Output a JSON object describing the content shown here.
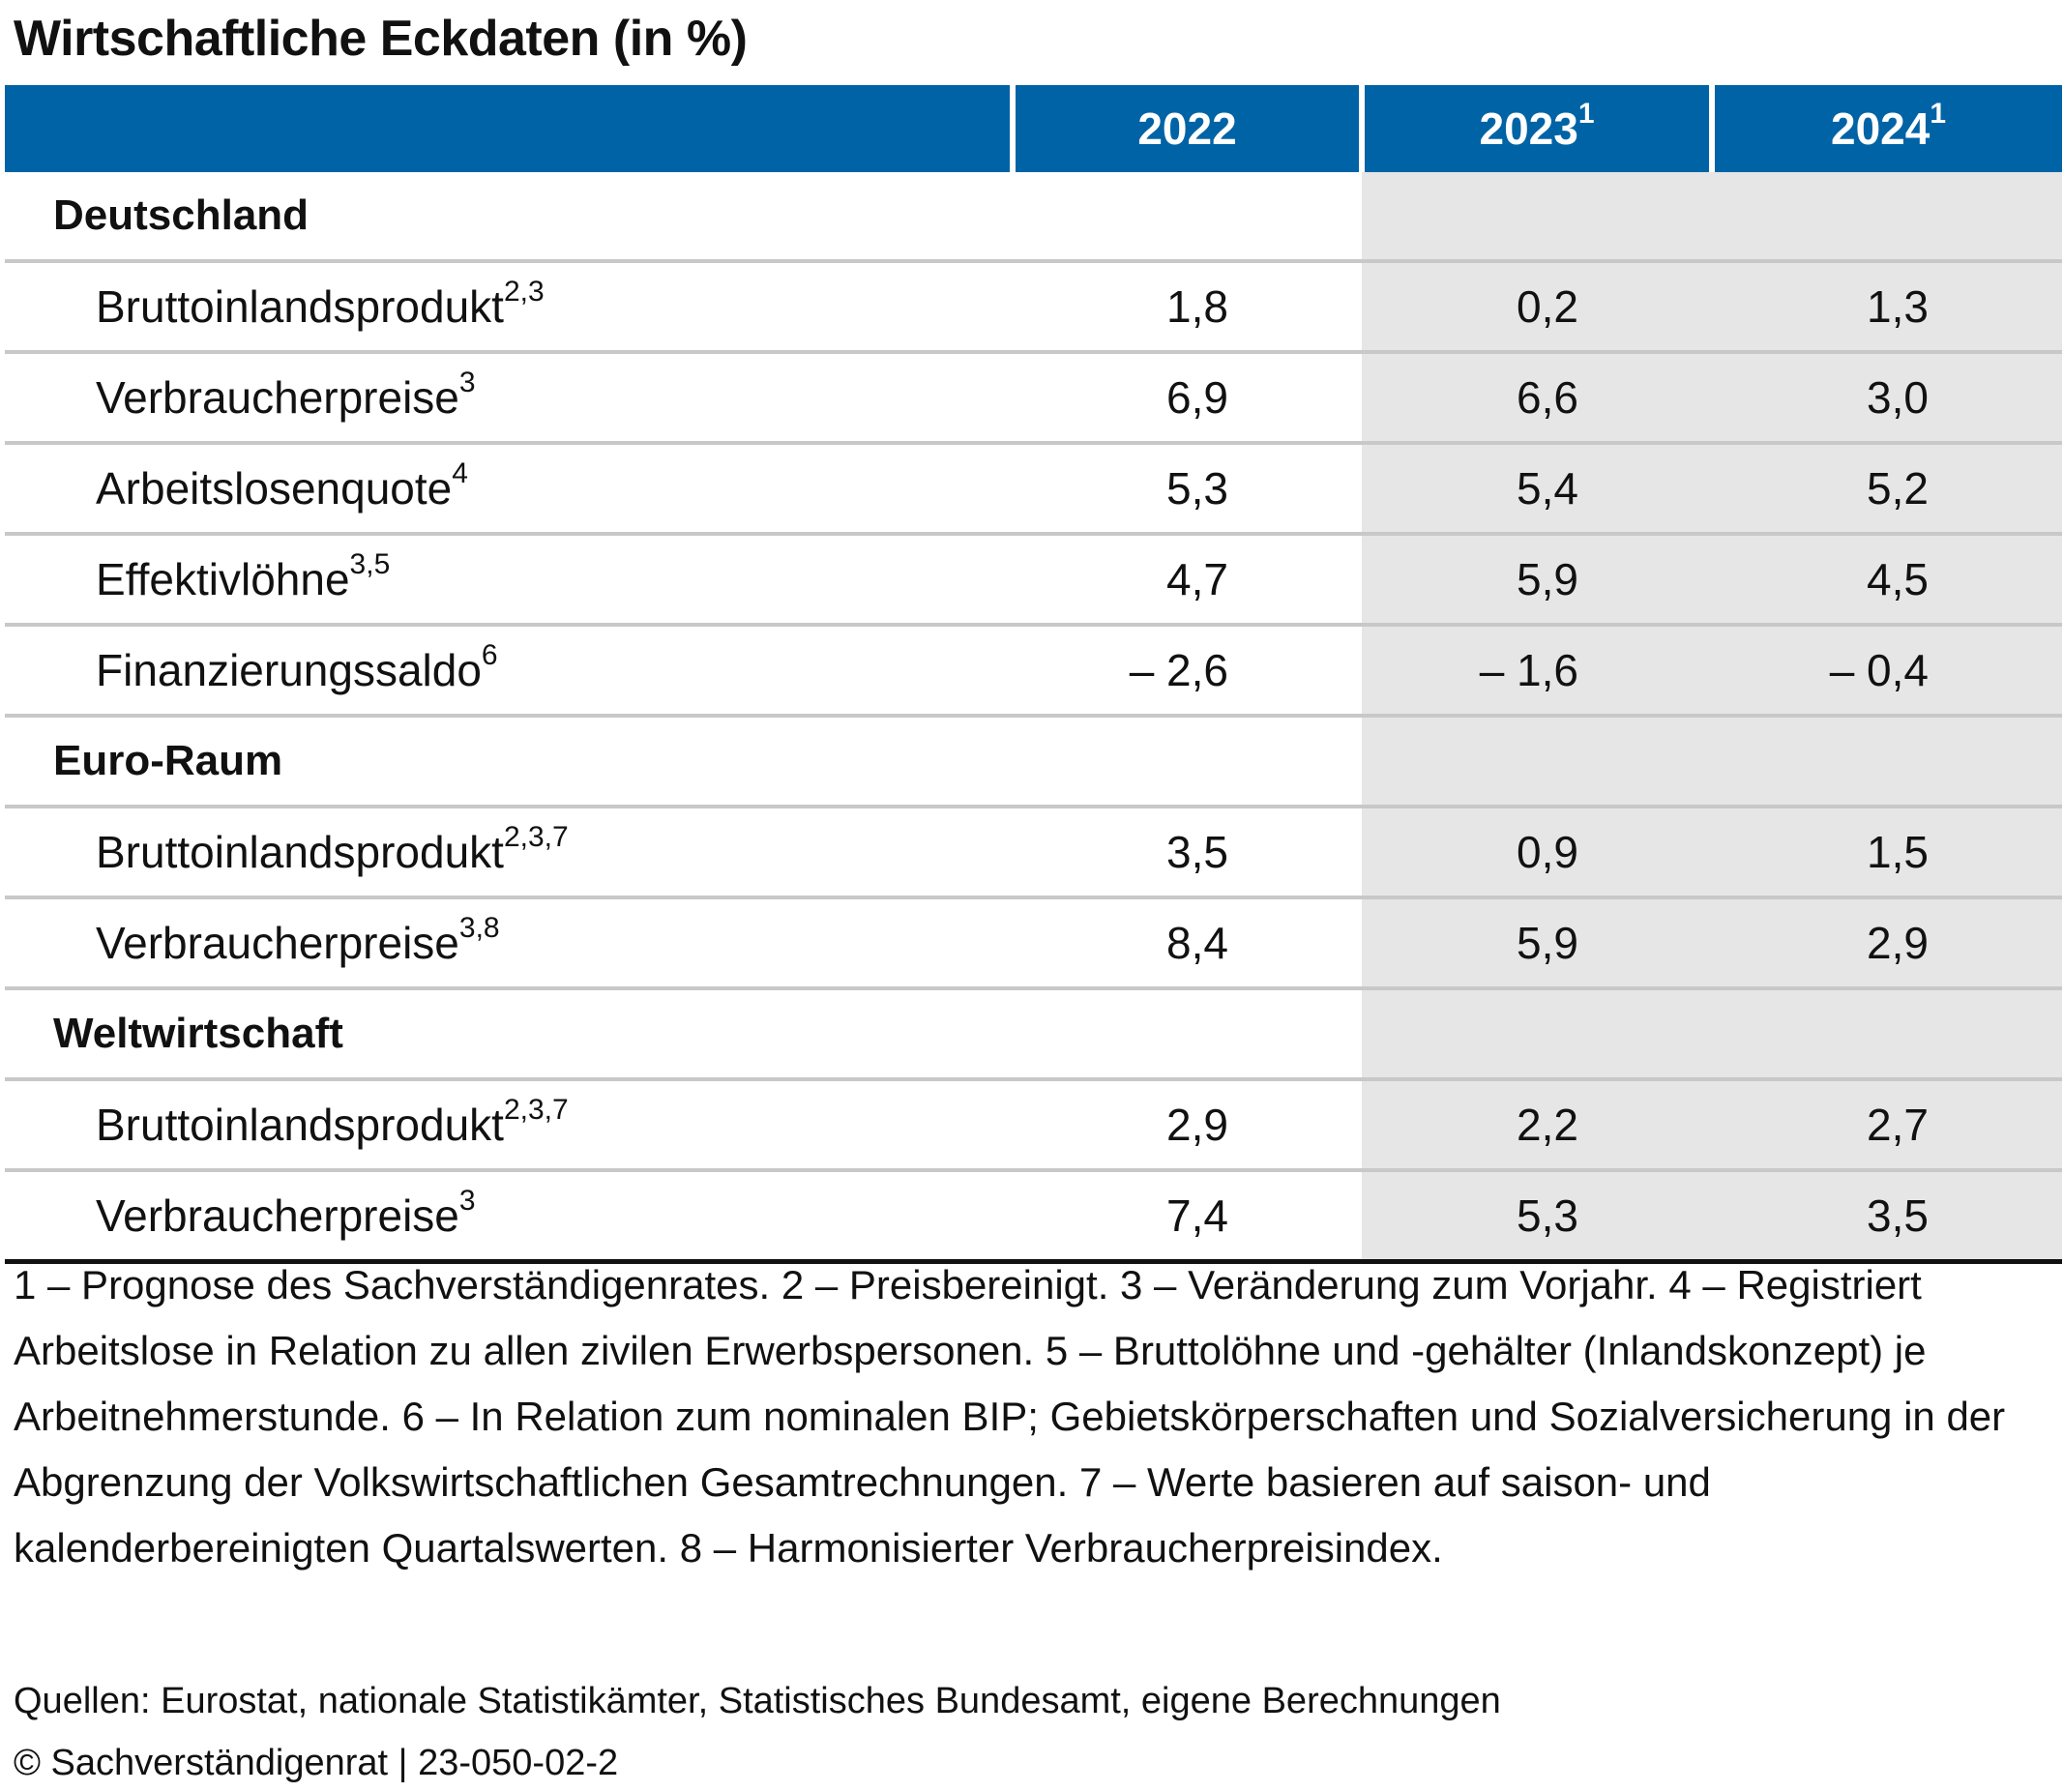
{
  "title": "Wirtschaftliche Eckdaten (in %)",
  "chart_data": {
    "type": "table",
    "columns": [
      {
        "label": "2022",
        "sup": ""
      },
      {
        "label": "2023",
        "sup": "1"
      },
      {
        "label": "2024",
        "sup": "1"
      }
    ],
    "sections": [
      {
        "name": "Deutschland",
        "rows": [
          {
            "label": "Bruttoinlandsprodukt",
            "sup": "2,3",
            "values": [
              "1,8",
              "0,2",
              "1,3"
            ]
          },
          {
            "label": "Verbraucherpreise",
            "sup": "3",
            "values": [
              "6,9",
              "6,6",
              "3,0"
            ]
          },
          {
            "label": "Arbeitslosenquote",
            "sup": "4",
            "values": [
              "5,3",
              "5,4",
              "5,2"
            ]
          },
          {
            "label": "Effektivlöhne",
            "sup": "3,5",
            "values": [
              "4,7",
              "5,9",
              "4,5"
            ]
          },
          {
            "label": "Finanzierungssaldo",
            "sup": "6",
            "values": [
              "– 2,6",
              "– 1,6",
              "– 0,4"
            ]
          }
        ]
      },
      {
        "name": "Euro-Raum",
        "rows": [
          {
            "label": "Bruttoinlandsprodukt",
            "sup": "2,3,7",
            "values": [
              "3,5",
              "0,9",
              "1,5"
            ]
          },
          {
            "label": "Verbraucherpreise",
            "sup": "3,8",
            "values": [
              "8,4",
              "5,9",
              "2,9"
            ]
          }
        ]
      },
      {
        "name": "Weltwirtschaft",
        "rows": [
          {
            "label": "Bruttoinlandsprodukt",
            "sup": "2,3,7",
            "values": [
              "2,9",
              "2,2",
              "2,7"
            ]
          },
          {
            "label": "Verbraucherpreise",
            "sup": "3",
            "values": [
              "7,4",
              "5,3",
              "3,5"
            ]
          }
        ]
      }
    ]
  },
  "footnotes": "1 – Prognose des Sachverständigenrates. 2 – Preisbereinigt. 3 – Veränderung zum Vorjahr. 4 – Registriert Arbeitslose in Relation zu allen zivilen Erwerbspersonen. 5 – Bruttolöhne und -gehälter (Inlandskonzept) je Arbeitnehmerstunde. 6 – In Relation zum nominalen BIP; Gebietskörperschaften und Sozialversicherung in der Abgrenzung der Volkswirtschaftlichen Gesamtrechnungen. 7 – Werte basieren auf saison- und kalenderbereinigten Quartalswerten. 8 – Harmonisierter Verbraucherpreisindex.",
  "source": "Quellen: Eurostat, nationale Statistikämter, Statistisches Bundesamt, eigene Berechnungen",
  "copyright": "© Sachverständigenrat | 23-050-02-2",
  "colors": {
    "header_bg": "#0063a6",
    "forecast_bg": "#e6e6e6",
    "rule": "#c8c8c8"
  }
}
